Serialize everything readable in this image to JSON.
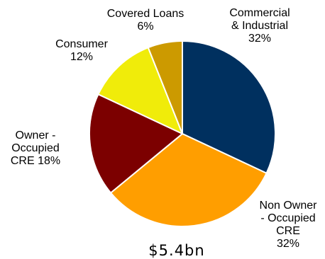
{
  "chart_data": {
    "type": "pie",
    "title": "",
    "total_label": "$5.4bn",
    "start_angle_deg": 0,
    "direction": "clockwise",
    "slices": [
      {
        "name": "Commercial & Industrial",
        "value": 32,
        "color": "#00305f",
        "label_lines": [
          "Commercial",
          "& Industrial",
          "32%"
        ]
      },
      {
        "name": "Non Owner - Occupied CRE",
        "value": 32,
        "color": "#ff9e00",
        "label_lines": [
          "Non Owner",
          "- Occupied",
          "CRE",
          "32%"
        ]
      },
      {
        "name": "Owner - Occupied CRE",
        "value": 18,
        "color": "#7c0000",
        "label_lines": [
          "Owner -",
          "Occupied",
          "CRE 18%"
        ]
      },
      {
        "name": "Consumer",
        "value": 12,
        "color": "#f0ec0a",
        "label_lines": [
          "Consumer",
          "12%"
        ]
      },
      {
        "name": "Covered Loans",
        "value": 6,
        "color": "#cc9a00",
        "label_lines": [
          "Covered Loans",
          "6%"
        ]
      }
    ]
  }
}
